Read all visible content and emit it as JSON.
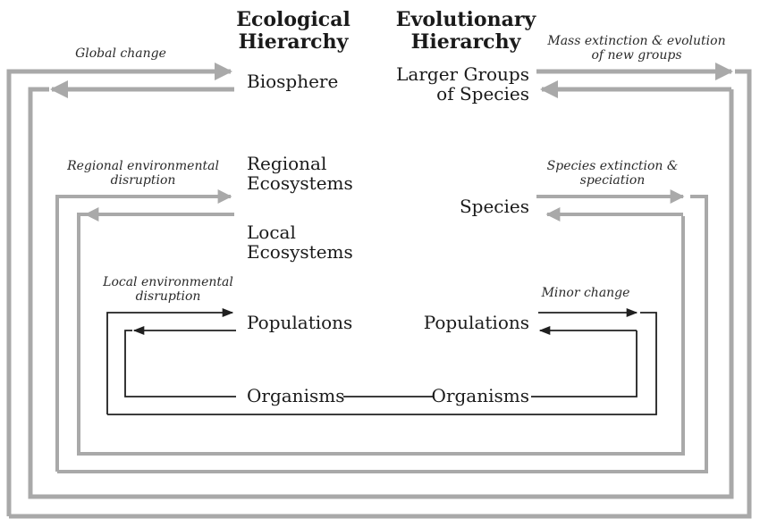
{
  "colors": {
    "text": "#1a1a1a",
    "thick_arrow": "#a9a9a9",
    "thin_arrow": "#202020",
    "background": "#ffffff"
  },
  "headers": {
    "ecological": "Ecological Hierarchy",
    "evolutionary": "Evolutionary Hierarchy"
  },
  "ecological_levels": {
    "biosphere": "Biosphere",
    "regional_ecosystems": "Regional Ecosystems",
    "local_ecosystems": "Local Ecosystems",
    "populations": "Populations",
    "organisms": "Organisms"
  },
  "evolutionary_levels": {
    "larger_groups": "Larger Groups of Species",
    "species": "Species",
    "populations": "Populations",
    "organisms": "Organisms"
  },
  "processes": {
    "global_change": "Global change",
    "mass_extinction": "Mass extinction & evolution of new groups",
    "regional_disruption": "Regional environmental disruption",
    "species_extinction": "Species extinction & speciation",
    "local_disruption": "Local environmental disruption",
    "minor_change": "Minor change"
  }
}
